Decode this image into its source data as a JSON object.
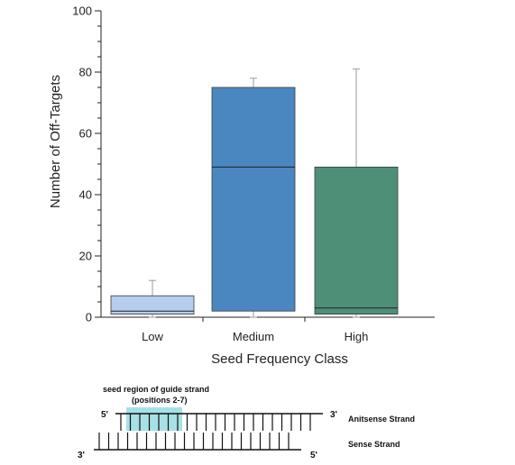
{
  "chart_data": {
    "type": "box",
    "title": "",
    "xlabel": "Seed Frequency Class",
    "ylabel": "Number of Off-Targets",
    "ylim": [
      0,
      100
    ],
    "yticks": [
      "0",
      "20",
      "40",
      "60",
      "80",
      "100"
    ],
    "categories": [
      "Low",
      "Medium",
      "High"
    ],
    "boxes": [
      {
        "category": "Low",
        "min": 0,
        "q1": 1,
        "median": 2,
        "q3": 7,
        "max": 12,
        "color": "#b7cdee"
      },
      {
        "category": "Medium",
        "min": 0,
        "q1": 2,
        "median": 49,
        "q3": 75,
        "max": 78,
        "color": "#4a87c0"
      },
      {
        "category": "High",
        "min": 0,
        "q1": 1,
        "median": 3,
        "q3": 49,
        "max": 81,
        "color": "#4e8f78"
      }
    ],
    "grid": false,
    "legend": "none"
  },
  "diagram": {
    "seed_label_line1": "seed region of guide strand",
    "seed_label_line2": "(positions 2-7)",
    "antisense_left_end": "5'",
    "antisense_right_end": "3'",
    "antisense_label": "Anitsense Strand",
    "sense_left_end": "3'",
    "sense_right_end": "5'",
    "sense_label": "Sense Strand",
    "seed_color": "#a6e1e6",
    "seed_start_position": 2,
    "seed_end_position": 7
  }
}
